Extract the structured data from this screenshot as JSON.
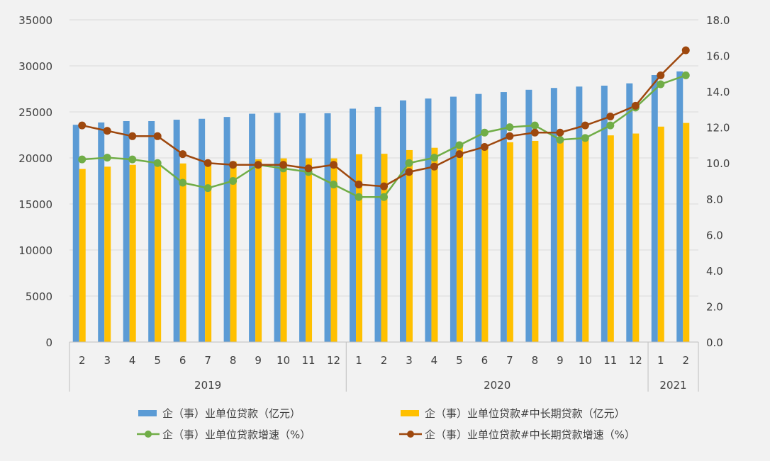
{
  "chart_data": {
    "type": "bar",
    "categories": [
      "2",
      "3",
      "4",
      "5",
      "6",
      "7",
      "8",
      "9",
      "10",
      "11",
      "12",
      "1",
      "2",
      "3",
      "4",
      "5",
      "6",
      "7",
      "8",
      "9",
      "10",
      "11",
      "12",
      "1",
      "2"
    ],
    "year_groups": [
      {
        "label": "2019",
        "count": 11
      },
      {
        "label": "2020",
        "count": 12
      },
      {
        "label": "2021",
        "count": 2
      }
    ],
    "y_left": {
      "ylim": [
        0,
        35000
      ],
      "ticks": [
        0,
        5000,
        10000,
        15000,
        20000,
        25000,
        30000,
        35000
      ]
    },
    "y_right": {
      "ylim": [
        0,
        18
      ],
      "ticks": [
        "0.0",
        "2.0",
        "4.0",
        "6.0",
        "8.0",
        "10.0",
        "12.0",
        "14.0",
        "16.0",
        "18.0"
      ]
    },
    "grid": true,
    "legend_position": "bottom",
    "series": [
      {
        "name": "企（事）业单位贷款（亿元）",
        "kind": "bar",
        "axis": "left",
        "color": "#5b9bd5",
        "values": [
          23600,
          23850,
          24000,
          24000,
          24150,
          24250,
          24450,
          24800,
          24900,
          24850,
          24850,
          25350,
          25550,
          26250,
          26450,
          26650,
          26950,
          27150,
          27400,
          27600,
          27750,
          27850,
          28100,
          29000,
          29400
        ]
      },
      {
        "name": "企（事）业单位贷款#中长期贷款（亿元）",
        "kind": "bar",
        "axis": "left",
        "color": "#ffc000",
        "values": [
          18800,
          19050,
          19250,
          19250,
          19400,
          19500,
          19600,
          19850,
          19950,
          19950,
          19950,
          20400,
          20450,
          20850,
          21100,
          21150,
          21450,
          21700,
          21850,
          22000,
          22200,
          22450,
          22650,
          23400,
          23800
        ]
      },
      {
        "name": "企（事）业单位贷款增速（%）",
        "kind": "line",
        "axis": "right",
        "color": "#70ad47",
        "values": [
          10.2,
          10.3,
          10.2,
          10.0,
          8.9,
          8.6,
          9.0,
          9.9,
          9.7,
          9.5,
          8.8,
          8.1,
          8.1,
          10.0,
          10.3,
          11.0,
          11.7,
          12.0,
          12.1,
          11.3,
          11.4,
          12.1,
          13.1,
          14.4,
          14.9
        ]
      },
      {
        "name": "企（事）业单位贷款#中长期贷款增速（%）",
        "kind": "line",
        "axis": "right",
        "color": "#9e480e",
        "values": [
          12.1,
          11.8,
          11.5,
          11.5,
          10.5,
          10.0,
          9.9,
          9.9,
          9.9,
          9.7,
          9.9,
          8.8,
          8.7,
          9.5,
          9.8,
          10.5,
          10.9,
          11.5,
          11.7,
          11.7,
          12.1,
          12.6,
          13.2,
          14.9,
          16.3
        ]
      }
    ]
  }
}
